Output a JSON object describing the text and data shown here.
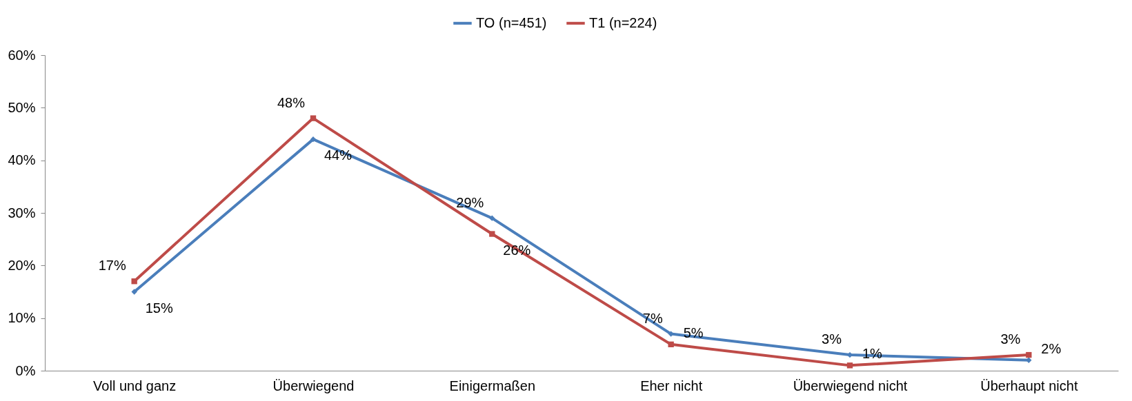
{
  "chart_data": {
    "type": "line",
    "categories": [
      "Voll und ganz",
      "Überwiegend",
      "Einigermaßen",
      "Eher nicht",
      "Überwiegend nicht",
      "Überhaupt nicht"
    ],
    "series": [
      {
        "name": "TO (n=451)",
        "color": "#4a7ebb",
        "marker": "diamond",
        "values": [
          15,
          44,
          29,
          7,
          3,
          2
        ],
        "value_labels": [
          "15%",
          "44%",
          "29%",
          "7%",
          "3%",
          "2%"
        ]
      },
      {
        "name": "T1 (n=224)",
        "color": "#be4b48",
        "marker": "square",
        "values": [
          17,
          48,
          26,
          5,
          1,
          3
        ],
        "value_labels": [
          "17%",
          "48%",
          "26%",
          "5%",
          "1%",
          "3%"
        ]
      }
    ],
    "ylim": [
      0,
      60
    ],
    "yticks": [
      {
        "value": 0,
        "label": "0%"
      },
      {
        "value": 10,
        "label": "10%"
      },
      {
        "value": 20,
        "label": "20%"
      },
      {
        "value": 30,
        "label": "30%"
      },
      {
        "value": 40,
        "label": "40%"
      },
      {
        "value": 50,
        "label": "50%"
      },
      {
        "value": 60,
        "label": "60%"
      }
    ],
    "data_labels": true,
    "legend": "top",
    "grid": false
  }
}
